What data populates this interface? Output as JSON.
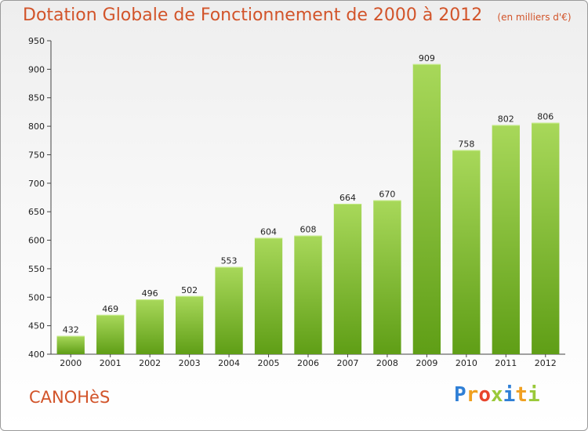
{
  "header": {
    "title": "Dotation Globale de Fonctionnement de 2000 à 2012",
    "unit_note": "(en milliers d'€)"
  },
  "footer": {
    "commune": "CANOHèS",
    "logo_letters": [
      "P",
      "r",
      "o",
      "x",
      "i",
      "t",
      "i"
    ],
    "logo_colors": [
      "#2f7fd6",
      "#f0a020",
      "#e8442c",
      "#9ac93a",
      "#2f7fd6",
      "#f0a020",
      "#9ac93a"
    ]
  },
  "chart_data": {
    "type": "bar",
    "title": "Dotation Globale de Fonctionnement de 2000 à 2012",
    "subtitle": "(en milliers d'€)",
    "xlabel": "",
    "ylabel": "",
    "categories": [
      "2000",
      "2001",
      "2002",
      "2003",
      "2004",
      "2005",
      "2006",
      "2007",
      "2008",
      "2009",
      "2010",
      "2011",
      "2012"
    ],
    "values": [
      432,
      469,
      496,
      502,
      553,
      604,
      608,
      664,
      670,
      909,
      758,
      802,
      806
    ],
    "ylim": [
      400,
      950
    ],
    "yticks": [
      400,
      450,
      500,
      550,
      600,
      650,
      700,
      750,
      800,
      850,
      900,
      950
    ],
    "ytick_labels": [
      "400",
      "450",
      "500",
      "550",
      "600",
      "650",
      "700",
      "750",
      "800",
      "850",
      "900",
      "950"
    ],
    "grid": false,
    "legend": "none",
    "bar_color_top": "#a8d85a",
    "bar_color_bottom": "#5f9e16"
  }
}
